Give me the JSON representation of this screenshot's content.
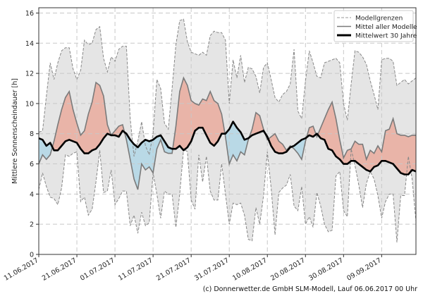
{
  "chart_data": {
    "type": "area",
    "title": "",
    "xlabel": "",
    "ylabel": "Mittlere Sonnenscheindauer [h]",
    "ylim": [
      0,
      16.35
    ],
    "yticks": [
      0,
      2,
      4,
      6,
      8,
      10,
      12,
      14,
      16
    ],
    "xtick_labels": [
      "11.06.2017",
      "21.06.2017",
      "01.07.2017",
      "11.07.2017",
      "21.07.2017",
      "31.07.2017",
      "10.08.2017",
      "20.08.2017",
      "30.08.2017",
      "09.09.2017"
    ],
    "grid": true,
    "legend_position": "top-right",
    "dates": [
      "11.06.2017",
      "12.06.2017",
      "13.06.2017",
      "14.06.2017",
      "15.06.2017",
      "16.06.2017",
      "17.06.2017",
      "18.06.2017",
      "19.06.2017",
      "20.06.2017",
      "21.06.2017",
      "22.06.2017",
      "23.06.2017",
      "24.06.2017",
      "25.06.2017",
      "26.06.2017",
      "27.06.2017",
      "28.06.2017",
      "29.06.2017",
      "30.06.2017",
      "01.07.2017",
      "02.07.2017",
      "03.07.2017",
      "04.07.2017",
      "05.07.2017",
      "06.07.2017",
      "07.07.2017",
      "08.07.2017",
      "09.07.2017",
      "10.07.2017",
      "11.07.2017",
      "12.07.2017",
      "13.07.2017",
      "14.07.2017",
      "15.07.2017",
      "16.07.2017",
      "17.07.2017",
      "18.07.2017",
      "19.07.2017",
      "20.07.2017",
      "21.07.2017",
      "22.07.2017",
      "23.07.2017",
      "24.07.2017",
      "25.07.2017",
      "26.07.2017",
      "27.07.2017",
      "28.07.2017",
      "29.07.2017",
      "30.07.2017",
      "31.07.2017",
      "01.08.2017",
      "02.08.2017",
      "03.08.2017",
      "04.08.2017",
      "05.08.2017",
      "06.08.2017",
      "07.08.2017",
      "08.08.2017",
      "09.08.2017",
      "10.08.2017",
      "11.08.2017",
      "12.08.2017",
      "13.08.2017",
      "14.08.2017",
      "15.08.2017",
      "16.08.2017",
      "17.08.2017",
      "18.08.2017",
      "19.08.2017",
      "20.08.2017",
      "21.08.2017",
      "22.08.2017",
      "23.08.2017",
      "24.08.2017",
      "25.08.2017",
      "26.08.2017",
      "27.08.2017",
      "28.08.2017",
      "29.08.2017",
      "30.08.2017",
      "31.08.2017",
      "01.09.2017",
      "02.09.2017",
      "03.09.2017",
      "04.09.2017",
      "05.09.2017",
      "06.09.2017",
      "07.09.2017",
      "08.09.2017",
      "09.09.2017",
      "10.09.2017",
      "11.09.2017",
      "12.09.2017",
      "13.09.2017",
      "14.09.2017",
      "15.09.2017",
      "16.09.2017",
      "17.09.2017",
      "18.09.2017"
    ],
    "series": [
      {
        "name": "Modellgrenzen",
        "role": "upper",
        "values": [
          8.1,
          8.2,
          10.5,
          12.7,
          11.6,
          12.7,
          13.5,
          13.7,
          13.7,
          12.3,
          11.6,
          12.2,
          14.2,
          13.9,
          14.0,
          14.9,
          15.1,
          13.0,
          12.1,
          13.1,
          12.8,
          13.6,
          13.8,
          13.8,
          9.0,
          6.5,
          7.5,
          8.8,
          7.2,
          6.6,
          8.0,
          11.6,
          11.0,
          8.7,
          8.3,
          11.0,
          13.9,
          15.5,
          15.6,
          14.1,
          13.4,
          13.3,
          13.2,
          13.4,
          13.2,
          14.5,
          14.8,
          14.7,
          14.7,
          14.2,
          10.0,
          12.9,
          11.7,
          13.2,
          11.4,
          12.4,
          12.3,
          11.8,
          10.7,
          12.4,
          12.7,
          11.6,
          10.4,
          10.1,
          10.6,
          10.8,
          11.3,
          13.6,
          9.5,
          9.0,
          11.5,
          13.5,
          12.7,
          11.8,
          11.7,
          12.7,
          12.8,
          12.9,
          13.0,
          12.7,
          10.0,
          8.9,
          11.3,
          13.5,
          13.4,
          13.1,
          12.6,
          11.5,
          10.6,
          9.6,
          12.9,
          13.0,
          13.0,
          12.8,
          11.2,
          11.4,
          11.6,
          11.3,
          11.5,
          11.7
        ]
      },
      {
        "name": "Modellgrenzen",
        "role": "lower",
        "values": [
          4.3,
          5.4,
          4.5,
          3.8,
          3.7,
          3.3,
          4.4,
          6.6,
          6.5,
          6.7,
          6.8,
          3.5,
          3.8,
          2.6,
          3.0,
          4.8,
          6.9,
          4.1,
          4.2,
          5.6,
          3.3,
          3.7,
          4.2,
          4.2,
          1.9,
          2.6,
          1.4,
          2.8,
          1.9,
          2.1,
          5.4,
          4.0,
          2.4,
          4.2,
          4.0,
          4.0,
          1.8,
          4.0,
          7.0,
          6.8,
          3.6,
          3.0,
          6.6,
          4.8,
          6.5,
          4.2,
          3.6,
          3.6,
          6.0,
          4.0,
          2.0,
          3.4,
          3.3,
          3.4,
          2.6,
          1.0,
          0.9,
          3.1,
          2.0,
          3.9,
          6.8,
          4.4,
          1.3,
          4.1,
          4.4,
          4.6,
          5.3,
          3.2,
          2.9,
          4.5,
          2.0,
          2.5,
          1.8,
          4.1,
          3.2,
          2.0,
          1.5,
          1.6,
          5.2,
          5.5,
          2.9,
          2.5,
          7.0,
          5.9,
          4.6,
          3.1,
          4.7,
          5.5,
          5.0,
          3.9,
          2.4,
          3.5,
          4.0,
          4.0,
          0.8,
          3.9,
          3.9,
          6.5,
          5.0,
          2.2
        ]
      },
      {
        "name": "Mittel aller Modelle",
        "values": [
          6.0,
          6.6,
          6.3,
          6.6,
          7.5,
          8.6,
          9.6,
          10.4,
          10.8,
          9.6,
          8.7,
          7.9,
          8.2,
          9.3,
          10.1,
          11.4,
          11.2,
          10.5,
          8.6,
          7.9,
          8.2,
          8.5,
          8.6,
          7.6,
          6.3,
          5.0,
          4.3,
          6.0,
          5.6,
          5.8,
          5.4,
          7.0,
          7.6,
          6.8,
          6.7,
          6.7,
          8.5,
          10.8,
          11.7,
          11.2,
          10.2,
          10.0,
          9.9,
          10.3,
          10.2,
          10.8,
          10.2,
          10.0,
          9.3,
          7.8,
          6.0,
          6.6,
          6.2,
          6.8,
          6.6,
          7.6,
          8.3,
          9.4,
          9.2,
          8.3,
          7.6,
          7.8,
          8.0,
          7.5,
          7.3,
          6.9,
          7.2,
          7.0,
          6.7,
          6.3,
          7.5,
          8.4,
          8.5,
          7.8,
          8.4,
          9.0,
          9.6,
          10.1,
          9.0,
          7.6,
          6.4,
          6.9,
          7.0,
          7.5,
          7.3,
          7.3,
          6.3,
          6.9,
          6.7,
          7.2,
          6.8,
          8.2,
          8.3,
          9.0,
          8.0,
          7.9,
          7.9,
          7.8,
          7.9,
          7.9
        ]
      },
      {
        "name": "Mittelwert 30 Jahre",
        "values": [
          7.7,
          7.6,
          7.2,
          7.4,
          6.9,
          6.9,
          7.2,
          7.5,
          7.6,
          7.5,
          7.4,
          7.0,
          6.7,
          6.7,
          6.9,
          7.0,
          7.3,
          7.7,
          8.0,
          7.9,
          7.9,
          7.8,
          8.2,
          8.0,
          7.6,
          7.3,
          7.1,
          7.4,
          7.6,
          7.5,
          7.6,
          7.8,
          7.9,
          7.5,
          7.1,
          7.0,
          7.0,
          7.2,
          6.9,
          7.1,
          7.5,
          8.2,
          8.4,
          8.4,
          7.9,
          7.4,
          7.2,
          7.5,
          8.0,
          8.0,
          8.3,
          8.8,
          8.4,
          8.1,
          7.6,
          7.7,
          7.9,
          8.0,
          8.1,
          8.2,
          7.8,
          7.2,
          6.8,
          6.7,
          6.7,
          6.8,
          7.1,
          7.2,
          7.4,
          7.6,
          7.7,
          7.9,
          7.8,
          8.0,
          7.7,
          7.6,
          7.0,
          6.9,
          6.5,
          6.3,
          6.0,
          6.0,
          6.2,
          6.2,
          6.0,
          5.8,
          5.6,
          5.5,
          5.8,
          5.9,
          6.2,
          6.2,
          6.1,
          6.0,
          5.7,
          5.4,
          5.3,
          5.3,
          5.6,
          5.5
        ]
      }
    ],
    "colors": {
      "band": "#e5e5e5",
      "above": "#e9b4a8",
      "below": "#b9d9e6",
      "band_line": "#888888",
      "mean_line": "#7a7a7a",
      "clim_line": "#000000"
    },
    "legend": [
      "Modellgrenzen",
      "Mittel aller Modelle",
      "Mittelwert 30 Jahre"
    ]
  },
  "footer": "(c) Donnerwetter.de GmbH SLM-Modell, Lauf 06.06.2017 00 Uhr"
}
